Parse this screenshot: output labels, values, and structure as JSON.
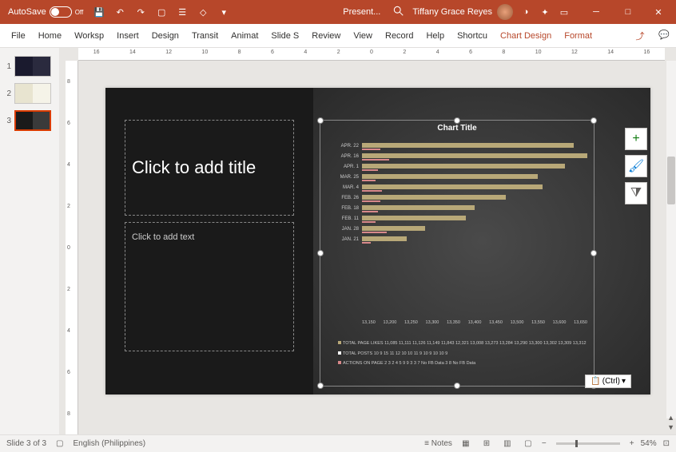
{
  "titlebar": {
    "autosave_label": "AutoSave",
    "autosave_state": "Off",
    "doc_title": "Present...",
    "user_name": "Tiffany Grace Reyes"
  },
  "ribbon_tabs": [
    "File",
    "Home",
    "Worksp",
    "Insert",
    "Design",
    "Transit",
    "Animat",
    "Slide S",
    "Review",
    "View",
    "Record",
    "Help",
    "Shortcu"
  ],
  "contextual_tabs": [
    "Chart Design",
    "Format"
  ],
  "thumbnails": [
    {
      "num": "1",
      "style": "dark"
    },
    {
      "num": "2",
      "style": "light"
    },
    {
      "num": "3",
      "style": "split",
      "selected": true
    }
  ],
  "slide": {
    "title_placeholder": "Click to add title",
    "text_placeholder": "Click to add text"
  },
  "chart": {
    "title": "Chart Title",
    "type": "bar-horizontal",
    "bar_color": "#b8a878",
    "accent_color": "#d8888a",
    "bg_gradient": [
      "#4a4a4a",
      "#2a2a2a"
    ],
    "text_color": "#cccccc",
    "categories": [
      "APR. 22",
      "APR. 16",
      "APR. 1",
      "MAR. 25",
      "MAR. 4",
      "FEB. 26",
      "FEB. 18",
      "FEB. 11",
      "JAN. 28",
      "JAN. 21"
    ],
    "values": [
      13620,
      13650,
      13600,
      13540,
      13550,
      13470,
      13400,
      13380,
      13290,
      13250
    ],
    "accent_values": [
      40,
      60,
      35,
      30,
      45,
      40,
      35,
      30,
      55,
      20
    ],
    "x_ticks": [
      "13,150",
      "13,200",
      "13,250",
      "13,300",
      "13,350",
      "13,400",
      "13,450",
      "13,500",
      "13,550",
      "13,600",
      "13,650"
    ],
    "x_min": 13150,
    "x_max": 13650,
    "legend": [
      {
        "color": "#b8a878",
        "text": "TOTAL PAGE LIKES 11,085 11,111 11,126 11,149 11,843 12,321 13,008 13,273 13,284 13,290 13,300 13,302 13,309 13,312"
      },
      {
        "color": "#ffffff",
        "text": "TOTAL POSTS 10 9 15 11 12 10 10 11 9 10 9 10 10 9"
      },
      {
        "color": "#d8888a",
        "text": "ACTIONS ON PAGE 2 3 2 4 5 9 9 3 3 7 No FB Data 3 8 No FB Data"
      }
    ]
  },
  "ruler_h": [
    "16",
    "14",
    "12",
    "10",
    "8",
    "6",
    "4",
    "2",
    "0",
    "2",
    "4",
    "6",
    "8",
    "10",
    "12",
    "14",
    "16"
  ],
  "ruler_v": [
    "8",
    "6",
    "4",
    "2",
    "0",
    "2",
    "4",
    "6",
    "8"
  ],
  "paste_btn": "(Ctrl)",
  "statusbar": {
    "slide_of": "Slide 3 of 3",
    "language": "English (Philippines)",
    "notes": "Notes",
    "zoom": "54%"
  },
  "colors": {
    "accent": "#b7472a",
    "bg": "#f3f2f1",
    "slide_left_bg": "#1a1a1a"
  }
}
